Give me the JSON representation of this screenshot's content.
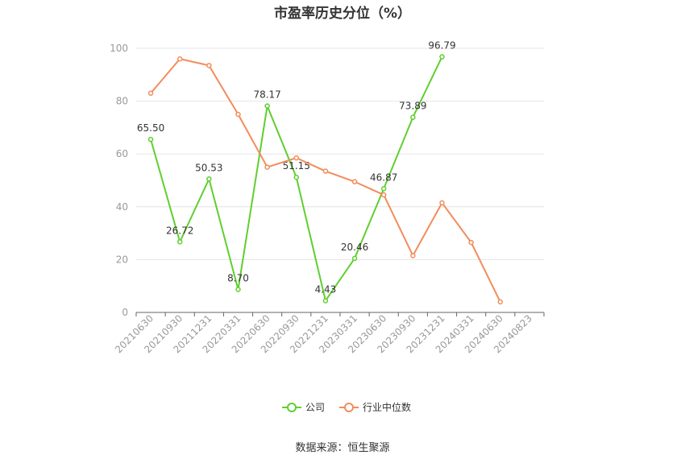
{
  "chart_data": {
    "type": "line",
    "title": "市盈率历史分位（%）",
    "categories": [
      "20210630",
      "20210930",
      "20211231",
      "20220331",
      "20220630",
      "20220930",
      "20221231",
      "20230331",
      "20230630",
      "20230930",
      "20231231",
      "20240331",
      "20240630",
      "20240823"
    ],
    "ylim": [
      0,
      100
    ],
    "yticks": [
      0,
      20,
      40,
      60,
      80,
      100
    ],
    "grid": true,
    "legend_position": "bottom",
    "series": [
      {
        "name": "公司",
        "color": "#5fcf2f",
        "values": [
          65.5,
          26.72,
          50.53,
          8.7,
          78.17,
          51.15,
          4.43,
          20.46,
          46.87,
          73.89,
          96.79,
          null,
          null,
          null
        ],
        "labels": [
          "65.50",
          "26.72",
          "50.53",
          "8.70",
          "78.17",
          "51.15",
          "4.43",
          "20.46",
          "46.87",
          "73.89",
          "96.79",
          null,
          null,
          null
        ]
      },
      {
        "name": "行业中位数",
        "color": "#f28c5c",
        "values": [
          83,
          96,
          93.5,
          75,
          55,
          58.5,
          53.5,
          49.5,
          44.5,
          21.5,
          41.5,
          26.5,
          4,
          null
        ]
      }
    ],
    "source": "数据来源：恒生聚源"
  }
}
